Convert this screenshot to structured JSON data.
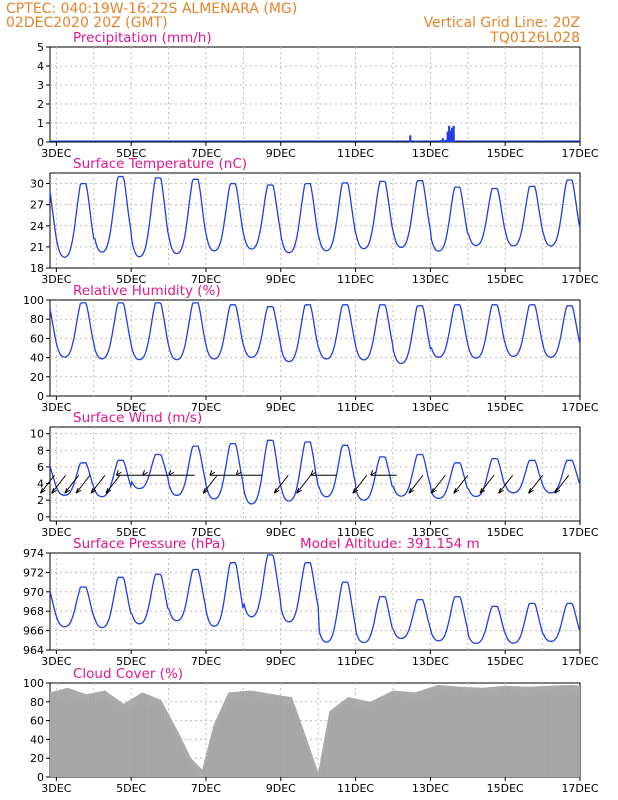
{
  "header": {
    "line1": "CPTEC:    040:19W-16:22S   ALMENARA (MG)",
    "line2": "02DEC2020 20Z (GMT)",
    "grid_note": "Vertical Grid Line: 20Z",
    "code": "TQ0126L028"
  },
  "colors": {
    "header": "#e8822a",
    "panel_title": "#e0188c",
    "series": "#1f3fe6",
    "cloud_fill": "#aaaaaa",
    "arrows": "#000000"
  },
  "chart_data": [
    {
      "id": "precip",
      "type": "bar",
      "title": "Precipitation (mm/h)",
      "ylim": [
        0,
        5
      ],
      "yticks": [
        0,
        1,
        2,
        3,
        4,
        5
      ],
      "xticks": [
        "3DEC",
        "5DEC",
        "7DEC",
        "9DEC",
        "11DEC",
        "13DEC",
        "15DEC",
        "17DEC"
      ],
      "x_range_days": [
        2.83,
        17.0
      ],
      "bars": [
        {
          "x": 12.46,
          "value": 0.35
        },
        {
          "x": 12.62,
          "value": 0.05
        },
        {
          "x": 13.28,
          "value": 0.1
        },
        {
          "x": 13.33,
          "value": 0.2
        },
        {
          "x": 13.42,
          "value": 0.12
        },
        {
          "x": 13.46,
          "value": 0.55
        },
        {
          "x": 13.5,
          "value": 0.85
        },
        {
          "x": 13.54,
          "value": 0.6
        },
        {
          "x": 13.58,
          "value": 0.75
        },
        {
          "x": 13.62,
          "value": 0.85
        }
      ]
    },
    {
      "id": "temp",
      "type": "line",
      "title": "Surface Temperature (nC)",
      "ylim": [
        18,
        31.5
      ],
      "yticks": [
        18,
        21,
        24,
        27,
        30
      ],
      "xticks": [
        "3DEC",
        "5DEC",
        "7DEC",
        "9DEC",
        "11DEC",
        "13DEC",
        "15DEC",
        "17DEC"
      ],
      "x_range_days": [
        2.83,
        17.0
      ],
      "daily_max": [
        30.0,
        31.0,
        30.8,
        30.6,
        30.0,
        29.8,
        30.0,
        30.1,
        30.3,
        30.4,
        29.5,
        29.3,
        29.6,
        30.5
      ],
      "daily_min": [
        18.5,
        19.2,
        18.5,
        19.0,
        19.5,
        19.8,
        19.2,
        19.5,
        19.8,
        20.0,
        19.5,
        20.4,
        20.3,
        20.2
      ]
    },
    {
      "id": "rh",
      "type": "line",
      "title": "Relative Humidity (%)",
      "ylim": [
        0,
        100
      ],
      "yticks": [
        0,
        20,
        40,
        60,
        80,
        100
      ],
      "xticks": [
        "3DEC",
        "5DEC",
        "7DEC",
        "9DEC",
        "11DEC",
        "13DEC",
        "15DEC",
        "17DEC"
      ],
      "x_range_days": [
        2.83,
        17.0
      ],
      "daily_max": [
        97,
        97,
        97,
        97,
        95,
        93,
        95,
        95,
        95,
        94,
        95,
        95,
        95,
        94
      ],
      "daily_min": [
        35,
        33,
        32,
        32,
        33,
        35,
        30,
        33,
        32,
        28,
        35,
        34,
        36,
        35
      ]
    },
    {
      "id": "wind",
      "type": "line",
      "title": "Surface Wind (m/s)",
      "ylim": [
        -0.5,
        10.8
      ],
      "yticks": [
        0,
        2,
        4,
        6,
        8,
        10
      ],
      "xticks": [
        "3DEC",
        "5DEC",
        "7DEC",
        "9DEC",
        "11DEC",
        "13DEC",
        "15DEC",
        "17DEC"
      ],
      "x_range_days": [
        2.83,
        17.0
      ],
      "daily_max": [
        6.5,
        6.8,
        7.5,
        8.5,
        8.8,
        9.2,
        9.0,
        8.6,
        7.2,
        7.5,
        6.5,
        7.0,
        6.8,
        6.8
      ],
      "daily_min": [
        2.2,
        2.0,
        3.0,
        2.0,
        1.5,
        0.8,
        1.2,
        1.8,
        1.5,
        2.0,
        1.8,
        2.0,
        2.5,
        2.5
      ],
      "wind_arrows": [
        {
          "x": 2.95,
          "dir": "SW"
        },
        {
          "x": 3.25,
          "dir": "SW"
        },
        {
          "x": 3.6,
          "dir": "SW"
        },
        {
          "x": 3.9,
          "dir": "SW"
        },
        {
          "x": 4.3,
          "dir": "SW"
        },
        {
          "x": 4.7,
          "dir": "SW"
        },
        {
          "x": 5.3,
          "dir": "W"
        },
        {
          "x": 6.0,
          "dir": "W"
        },
        {
          "x": 6.7,
          "dir": "W"
        },
        {
          "x": 7.3,
          "dir": "SW"
        },
        {
          "x": 7.8,
          "dir": "W"
        },
        {
          "x": 8.5,
          "dir": "W"
        },
        {
          "x": 9.2,
          "dir": "SW"
        },
        {
          "x": 9.8,
          "dir": "SW"
        },
        {
          "x": 10.5,
          "dir": "W"
        },
        {
          "x": 11.3,
          "dir": "SW"
        },
        {
          "x": 12.1,
          "dir": "W"
        },
        {
          "x": 12.8,
          "dir": "SW"
        },
        {
          "x": 13.4,
          "dir": "SW"
        },
        {
          "x": 14.0,
          "dir": "SW"
        },
        {
          "x": 14.7,
          "dir": "SW"
        },
        {
          "x": 15.2,
          "dir": "SW"
        },
        {
          "x": 16.0,
          "dir": "SW"
        },
        {
          "x": 16.7,
          "dir": "SW"
        }
      ]
    },
    {
      "id": "pressure",
      "type": "line",
      "title": "Surface Pressure (hPa)",
      "annotation": "Model Altitude: 391.154 m",
      "ylim": [
        964,
        974
      ],
      "yticks": [
        964,
        966,
        968,
        970,
        972,
        974
      ],
      "xticks": [
        "3DEC",
        "5DEC",
        "7DEC",
        "9DEC",
        "11DEC",
        "13DEC",
        "15DEC",
        "17DEC"
      ],
      "x_range_days": [
        2.83,
        17.0
      ],
      "daily_max": [
        970.5,
        971.5,
        971.8,
        972.3,
        973.0,
        973.8,
        973.0,
        971.0,
        969.5,
        969.2,
        969.5,
        968.5,
        968.8,
        968.8
      ],
      "daily_min": [
        966.0,
        965.8,
        966.2,
        966.5,
        965.8,
        966.8,
        966.3,
        964.2,
        964.3,
        964.8,
        964.5,
        964.3,
        964.3,
        964.5
      ]
    },
    {
      "id": "cloud",
      "type": "area",
      "title": "Cloud Cover (%)",
      "ylim": [
        0,
        100
      ],
      "yticks": [
        0,
        20,
        40,
        60,
        80,
        100
      ],
      "xticks": [
        "3DEC",
        "5DEC",
        "7DEC",
        "9DEC",
        "11DEC",
        "13DEC",
        "15DEC",
        "17DEC"
      ],
      "x_range_days": [
        2.83,
        17.0
      ],
      "profile": [
        {
          "x": 2.83,
          "y": 90
        },
        {
          "x": 3.3,
          "y": 95
        },
        {
          "x": 3.8,
          "y": 88
        },
        {
          "x": 4.3,
          "y": 92
        },
        {
          "x": 4.8,
          "y": 78
        },
        {
          "x": 5.3,
          "y": 90
        },
        {
          "x": 5.8,
          "y": 82
        },
        {
          "x": 6.3,
          "y": 45
        },
        {
          "x": 6.6,
          "y": 20
        },
        {
          "x": 6.9,
          "y": 8
        },
        {
          "x": 7.2,
          "y": 55
        },
        {
          "x": 7.6,
          "y": 90
        },
        {
          "x": 8.2,
          "y": 92
        },
        {
          "x": 8.8,
          "y": 88
        },
        {
          "x": 9.3,
          "y": 85
        },
        {
          "x": 9.7,
          "y": 40
        },
        {
          "x": 10.0,
          "y": 5
        },
        {
          "x": 10.3,
          "y": 70
        },
        {
          "x": 10.8,
          "y": 85
        },
        {
          "x": 11.4,
          "y": 80
        },
        {
          "x": 12.0,
          "y": 92
        },
        {
          "x": 12.6,
          "y": 90
        },
        {
          "x": 13.2,
          "y": 98
        },
        {
          "x": 13.8,
          "y": 96
        },
        {
          "x": 14.4,
          "y": 95
        },
        {
          "x": 15.0,
          "y": 97
        },
        {
          "x": 15.6,
          "y": 96
        },
        {
          "x": 16.2,
          "y": 97
        },
        {
          "x": 16.8,
          "y": 98
        },
        {
          "x": 17.0,
          "y": 97
        }
      ]
    }
  ]
}
